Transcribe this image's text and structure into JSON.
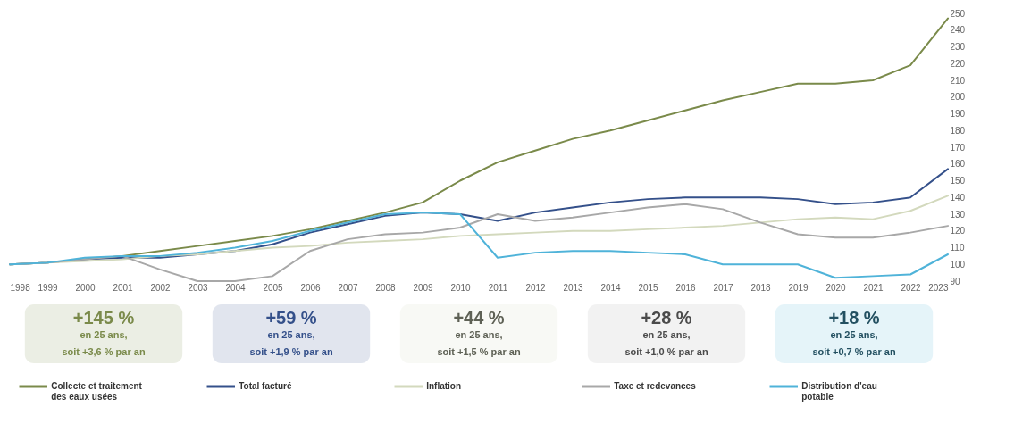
{
  "chart_data": {
    "type": "line",
    "x": [
      1998,
      1999,
      2000,
      2001,
      2002,
      2003,
      2004,
      2005,
      2006,
      2007,
      2008,
      2009,
      2010,
      2011,
      2012,
      2013,
      2014,
      2015,
      2016,
      2017,
      2018,
      2019,
      2020,
      2021,
      2022,
      2023
    ],
    "xlim": [
      1998,
      2023
    ],
    "xticks": [
      1998,
      1999,
      2000,
      2001,
      2002,
      2003,
      2004,
      2005,
      2006,
      2007,
      2008,
      2009,
      2010,
      2011,
      2012,
      2013,
      2014,
      2015,
      2016,
      2017,
      2018,
      2019,
      2020,
      2021,
      2022,
      2023
    ],
    "ylim": [
      90,
      250
    ],
    "yticks": [
      90,
      100,
      110,
      120,
      130,
      140,
      150,
      160,
      170,
      180,
      190,
      200,
      210,
      220,
      230,
      240,
      250
    ],
    "series": [
      {
        "name": "Collecte et traitement des eaux usées",
        "color": "#7a8a4a",
        "values": [
          100,
          101,
          103,
          105,
          108,
          111,
          114,
          117,
          121,
          126,
          131,
          137,
          150,
          161,
          168,
          175,
          180,
          186,
          192,
          198,
          203,
          208,
          208,
          210,
          219,
          247
        ]
      },
      {
        "name": "Total facturé",
        "color": "#34508a",
        "values": [
          100,
          101,
          103,
          104,
          104,
          106,
          108,
          112,
          119,
          124,
          129,
          131,
          130,
          126,
          131,
          134,
          137,
          139,
          140,
          140,
          140,
          139,
          136,
          137,
          140,
          157
        ]
      },
      {
        "name": "Inflation",
        "color": "#d3d9bd",
        "values": [
          100,
          101,
          102,
          103,
          105,
          106,
          108,
          110,
          111,
          113,
          114,
          115,
          117,
          118,
          119,
          120,
          120,
          121,
          122,
          123,
          125,
          127,
          128,
          127,
          132,
          141
        ]
      },
      {
        "name": "Taxe et redevances",
        "color": "#a8a8a8",
        "values": [
          100,
          101,
          103,
          105,
          97,
          90,
          90,
          93,
          108,
          115,
          118,
          119,
          122,
          130,
          126,
          128,
          131,
          134,
          136,
          133,
          125,
          118,
          116,
          116,
          119,
          123
        ]
      },
      {
        "name": "Distribution d'eau potable",
        "color": "#4fb3d9",
        "values": [
          100,
          101,
          104,
          105,
          105,
          107,
          110,
          114,
          120,
          125,
          130,
          131,
          130,
          104,
          107,
          108,
          108,
          107,
          106,
          100,
          100,
          100,
          92,
          93,
          94,
          106
        ]
      }
    ],
    "annotations": [
      "+145 %\nen 25 ans,\nsoit +3,6 % par an",
      "+59 %\nen 25 ans,\nsoit +1,9 % par an",
      "+44 %\nen 25 ans,\nsoit +1,5 % par an",
      "+28 %\nen 25 ans,\nsoit +1,0 % par an",
      "+18 %\nen 25 ans,\nsoit +0,7 % par an"
    ],
    "legend": "bottom",
    "grid": false,
    "marker": "none",
    "line_style": "solid"
  }
}
